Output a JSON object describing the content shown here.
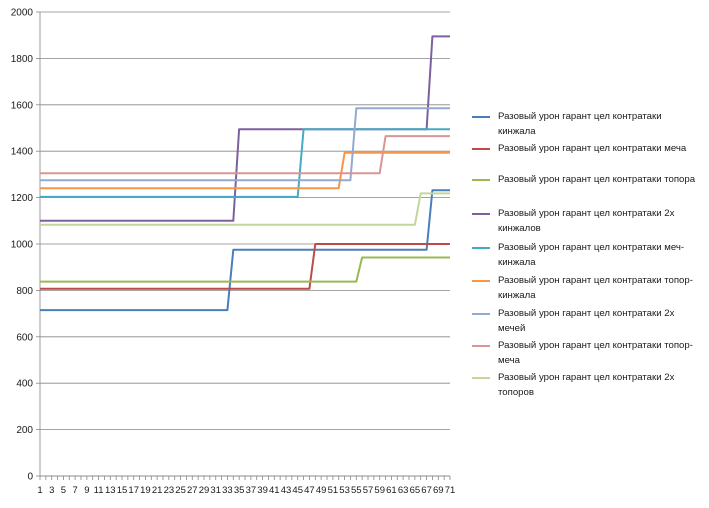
{
  "chart_data": {
    "type": "line",
    "title": "",
    "xlabel": "",
    "ylabel": "",
    "ylim": [
      0,
      2000
    ],
    "yticks": [
      0,
      200,
      400,
      600,
      800,
      1000,
      1200,
      1400,
      1600,
      1800,
      2000
    ],
    "xlim": [
      1,
      71
    ],
    "xtick_labels": [
      "1",
      "3",
      "5",
      "7",
      "9",
      "11",
      "13",
      "15",
      "17",
      "19",
      "21",
      "23",
      "25",
      "27",
      "29",
      "31",
      "33",
      "35",
      "37",
      "39",
      "41",
      "43",
      "45",
      "47",
      "49",
      "51",
      "53",
      "55",
      "57",
      "59",
      "61",
      "63",
      "65",
      "67",
      "69",
      "71"
    ],
    "grid": "horizontal",
    "legend_position": "right",
    "series": [
      {
        "name": "Разовый урон гарант цел контратаки кинжала",
        "color": "#4a7ebb",
        "steps": [
          [
            1,
            715
          ],
          [
            34,
            975
          ],
          [
            68,
            1232
          ]
        ]
      },
      {
        "name": "Разовый урон гарант цел контратаки меча",
        "color": "#be4b48",
        "steps": [
          [
            1,
            807
          ],
          [
            48,
            1000
          ]
        ]
      },
      {
        "name": "Разовый урон гарант цел контратаки топора",
        "color": "#98b954",
        "steps": [
          [
            1,
            838
          ],
          [
            56,
            942
          ]
        ]
      },
      {
        "name": "Разовый урон гарант цел контратаки 2х кинжалов",
        "color": "#7d60a0",
        "steps": [
          [
            1,
            1100
          ],
          [
            35,
            1495
          ],
          [
            68,
            1895
          ]
        ]
      },
      {
        "name": "Разовый урон гарант цел контратаки меч-кинжала",
        "color": "#46aac4",
        "steps": [
          [
            1,
            1203
          ],
          [
            46,
            1495
          ]
        ]
      },
      {
        "name": "Разовый урон гарант цел контратаки топор-кинжала",
        "color": "#f79646",
        "steps": [
          [
            1,
            1240
          ],
          [
            53,
            1393
          ]
        ]
      },
      {
        "name": "Разовый урон гарант цел контратаки 2х мечей",
        "color": "#93a9cf",
        "steps": [
          [
            1,
            1275
          ],
          [
            55,
            1585
          ]
        ]
      },
      {
        "name": "Разовый урон гарант цел контратаки топор-меча",
        "color": "#d99694",
        "steps": [
          [
            1,
            1305
          ],
          [
            60,
            1465
          ]
        ]
      },
      {
        "name": "Разовый урон гарант цел контратаки 2х топоров",
        "color": "#c3d69b",
        "steps": [
          [
            1,
            1083
          ],
          [
            66,
            1218
          ]
        ]
      }
    ]
  }
}
